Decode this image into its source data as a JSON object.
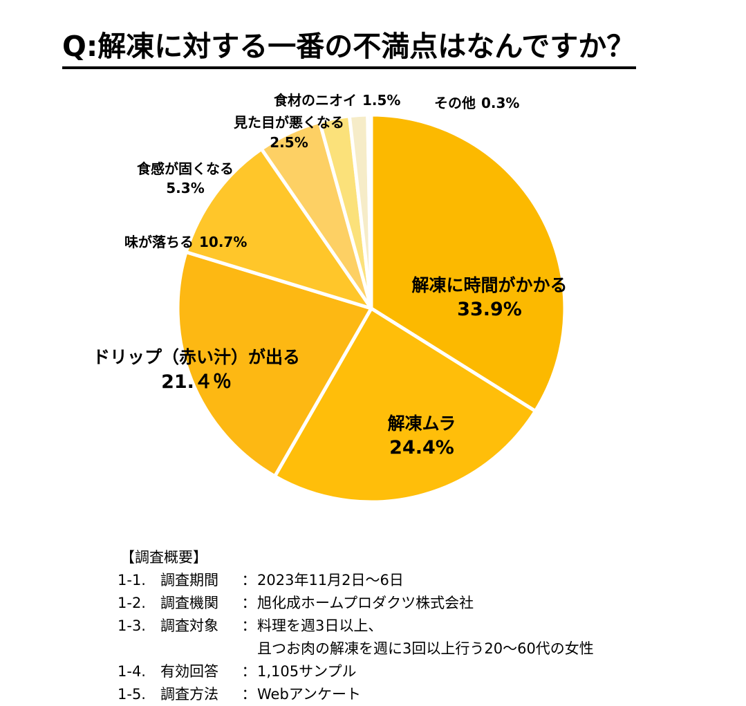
{
  "title": "Q:解凍に対する一番の不満点はなんですか？",
  "chart_data": {
    "type": "pie",
    "start_angle_deg": 0,
    "direction": "clockwise",
    "slices": [
      {
        "name": "解凍に時間がかかる",
        "value_label": "33.9%",
        "value": 33.9,
        "color": "#FCB900"
      },
      {
        "name": "解凍ムラ",
        "value_label": "24.4%",
        "value": 24.4,
        "color": "#FFBE0A"
      },
      {
        "name": "ドリップ（赤い汁）が出る",
        "value_label": "21.４％",
        "value": 21.4,
        "color": "#FDB813"
      },
      {
        "name": "味が落ちる",
        "value_label": "10.7%",
        "value": 10.7,
        "color": "#FFC62A"
      },
      {
        "name": "食感が固くなる",
        "value_label": "5.3%",
        "value": 5.3,
        "color": "#FDD064"
      },
      {
        "name": "見た目が悪くなる",
        "value_label": "2.5%",
        "value": 2.5,
        "color": "#FBE17A"
      },
      {
        "name": "食材のニオイ",
        "value_label": "1.5%",
        "value": 1.5,
        "color": "#F6ECC8"
      },
      {
        "name": "その他",
        "value_label": "0.3%",
        "value": 0.3,
        "color": "#FBF6E6"
      }
    ]
  },
  "survey": {
    "heading": "【調査概要】",
    "rows": [
      {
        "num": "1-1.",
        "key": "調査期間",
        "colon": "：",
        "value": "2023年11月2日～6日"
      },
      {
        "num": "1-2.",
        "key": "調査機関",
        "colon": "：",
        "value": "旭化成ホームプロダクツ株式会社"
      },
      {
        "num": "1-3.",
        "key": "調査対象",
        "colon": "：",
        "value": "料理を週3日以上、",
        "cont": "且つお肉の解凍を週に3回以上行う20～60代の女性"
      },
      {
        "num": "1-4.",
        "key": "有効回答",
        "colon": "：",
        "value": "1,105サンプル"
      },
      {
        "num": "1-5.",
        "key": "調査方法",
        "colon": "：",
        "value": "Webアンケート"
      }
    ]
  }
}
